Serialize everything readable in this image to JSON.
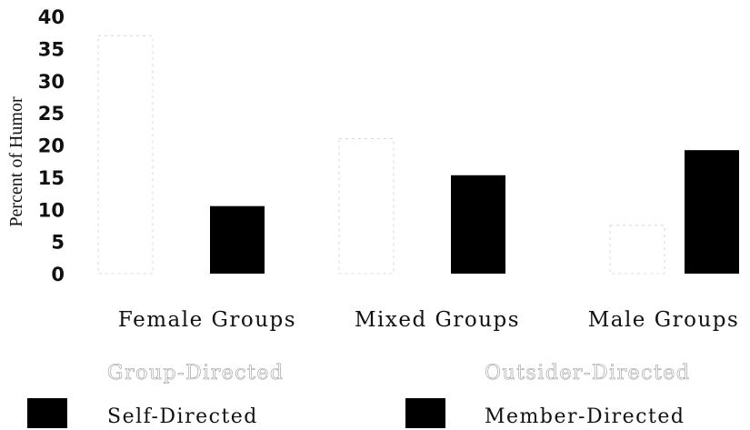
{
  "chart_data": {
    "type": "bar",
    "ylabel": "Percent of Humor",
    "ylim": [
      0,
      40
    ],
    "yticks": [
      "0",
      "5",
      "10",
      "15",
      "20",
      "25",
      "30",
      "35",
      "40"
    ],
    "categories": [
      "Female Groups",
      "Mixed Groups",
      "Male Groups"
    ],
    "series": [
      {
        "name": "Group-Directed",
        "values": [
          37,
          21,
          0
        ],
        "color": "#ffffff",
        "stroke": "#bdbdbd"
      },
      {
        "name": "Outsider-Directed",
        "values": [
          0,
          0,
          7.5
        ],
        "color": "#ffffff",
        "stroke": "#bdbdbd"
      },
      {
        "name": "Self-Directed",
        "values": [
          0,
          0,
          0
        ],
        "color": "#000000"
      },
      {
        "name": "Member-Directed",
        "values": [
          10.5,
          15.3,
          19.2
        ],
        "color": "#000000"
      }
    ],
    "legend": {
      "position": "bottom",
      "items": [
        "Group-Directed",
        "Outsider-Directed",
        "Self-Directed",
        "Member-Directed"
      ]
    }
  }
}
